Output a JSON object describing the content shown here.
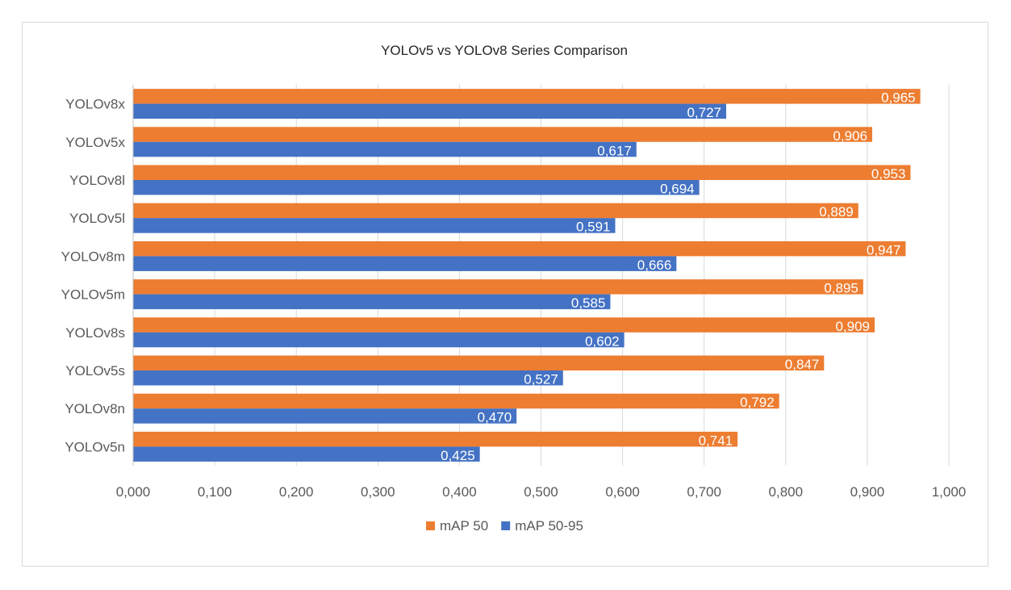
{
  "chart_data": {
    "type": "bar",
    "orientation": "horizontal",
    "title": "YOLOv5 vs YOLOv8 Series Comparison",
    "xlabel": "",
    "ylabel": "",
    "categories": [
      "YOLOv8x",
      "YOLOv5x",
      "YOLOv8l",
      "YOLOv5l",
      "YOLOv8m",
      "YOLOv5m",
      "YOLOv8s",
      "YOLOv5s",
      "YOLOv8n",
      "YOLOv5n"
    ],
    "series": [
      {
        "name": "mAP 50",
        "color": "#ed7d31",
        "values": [
          0.965,
          0.906,
          0.953,
          0.889,
          0.947,
          0.895,
          0.909,
          0.847,
          0.792,
          0.741
        ],
        "labels": [
          "0,965",
          "0,906",
          "0,953",
          "0,889",
          "0,947",
          "0,895",
          "0,909",
          "0,847",
          "0,792",
          "0,741"
        ]
      },
      {
        "name": "mAP 50-95",
        "color": "#4472c4",
        "values": [
          0.727,
          0.617,
          0.694,
          0.591,
          0.666,
          0.585,
          0.602,
          0.527,
          0.47,
          0.425
        ],
        "labels": [
          "0,727",
          "0,617",
          "0,694",
          "0,591",
          "0,666",
          "0,585",
          "0,602",
          "0,527",
          "0,470",
          "0,425"
        ]
      }
    ],
    "xlim": [
      0,
      1.0
    ],
    "xticks": [
      0,
      0.1,
      0.2,
      0.3,
      0.4,
      0.5,
      0.6,
      0.7,
      0.8,
      0.9,
      1.0
    ],
    "xtick_labels": [
      "0,000",
      "0,100",
      "0,200",
      "0,300",
      "0,400",
      "0,500",
      "0,600",
      "0,700",
      "0,800",
      "0,900",
      "1,000"
    ],
    "grid": true,
    "legend_position": "bottom",
    "grid_color": "#d9d9d9",
    "axis_color": "#bfbfbf"
  }
}
